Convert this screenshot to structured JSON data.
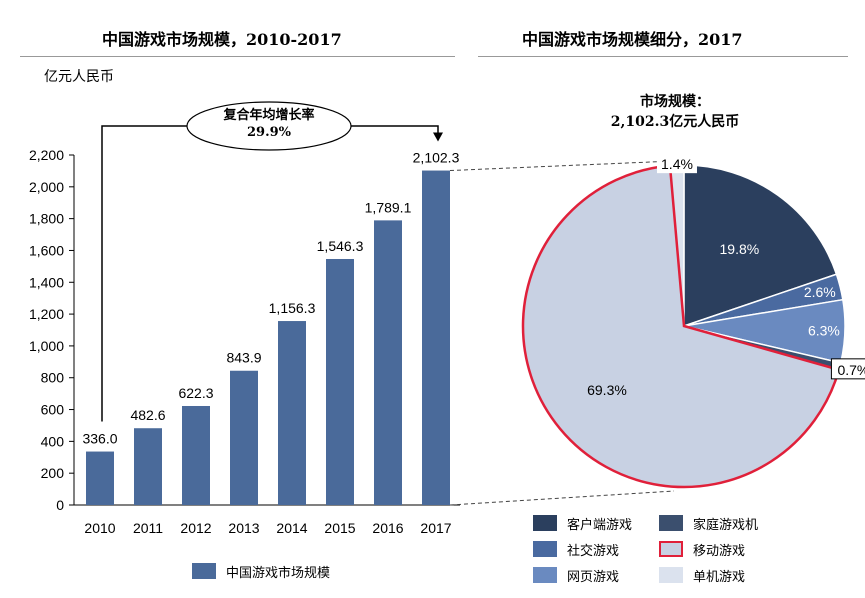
{
  "left_title": "中国游戏市场规模，2010-2017",
  "right_title": "中国游戏市场规模细分，2017",
  "unit_label": "亿元人民币",
  "cagr": {
    "line1": "复合年均增长率",
    "line2": "29.9%"
  },
  "pie_note": {
    "line1": "市场规模：",
    "line2": "2,102.3亿元人民币"
  },
  "colors": {
    "bar": "#4a6a9a",
    "client": "#2b3f5e",
    "console": "#3b4f6e",
    "social": "#4a6aa0",
    "mobile": "#c8d1e3",
    "web": "#6a8ac0",
    "single": "#dbe2ee",
    "highlight": "#e0203a"
  },
  "chart_data": [
    {
      "type": "bar",
      "title": "中国游戏市场规模，2010-2017",
      "ylabel": "亿元人民币",
      "categories": [
        "2010",
        "2011",
        "2012",
        "2013",
        "2014",
        "2015",
        "2016",
        "2017"
      ],
      "values": [
        336.0,
        482.6,
        622.3,
        843.9,
        1156.3,
        1546.3,
        1789.1,
        2102.3
      ],
      "labels": [
        "336.0",
        "482.6",
        "622.3",
        "843.9",
        "1,156.3",
        "1,546.3",
        "1,789.1",
        "2,102.3"
      ],
      "ylim": [
        0,
        2200
      ],
      "yticks": [
        0,
        200,
        400,
        600,
        800,
        1000,
        1200,
        1400,
        1600,
        1800,
        2000,
        2200
      ],
      "ytick_labels": [
        "0",
        "200",
        "400",
        "600",
        "800",
        "1,000",
        "1,200",
        "1,400",
        "1,600",
        "1,800",
        "2,000",
        "2,200"
      ],
      "series": [
        {
          "name": "中国游戏市场规模",
          "values": [
            336.0,
            482.6,
            622.3,
            843.9,
            1156.3,
            1546.3,
            1789.1,
            2102.3
          ]
        }
      ],
      "legend": "bottom",
      "grid": false
    },
    {
      "type": "pie",
      "title": "中国游戏市场规模细分，2017",
      "slices": [
        {
          "name": "单机游戏",
          "value": 1.4,
          "label": "1.4%",
          "color_key": "single"
        },
        {
          "name": "客户端游戏",
          "value": 19.8,
          "label": "19.8%",
          "color_key": "client"
        },
        {
          "name": "社交游戏",
          "value": 2.6,
          "label": "2.6%",
          "color_key": "social"
        },
        {
          "name": "网页游戏",
          "value": 6.3,
          "label": "6.3%",
          "color_key": "web"
        },
        {
          "name": "家庭游戏机",
          "value": 0.7,
          "label": "0.7%",
          "color_key": "console"
        },
        {
          "name": "移动游戏",
          "value": 69.3,
          "label": "69.3%",
          "color_key": "mobile",
          "highlighted": true
        }
      ],
      "legend": [
        {
          "name": "客户端游戏",
          "color_key": "client"
        },
        {
          "name": "家庭游戏机",
          "color_key": "console"
        },
        {
          "name": "社交游戏",
          "color_key": "social"
        },
        {
          "name": "移动游戏",
          "color_key": "mobile",
          "highlighted": true
        },
        {
          "name": "网页游戏",
          "color_key": "web"
        },
        {
          "name": "单机游戏",
          "color_key": "single"
        }
      ],
      "legend_position": "bottom"
    }
  ]
}
